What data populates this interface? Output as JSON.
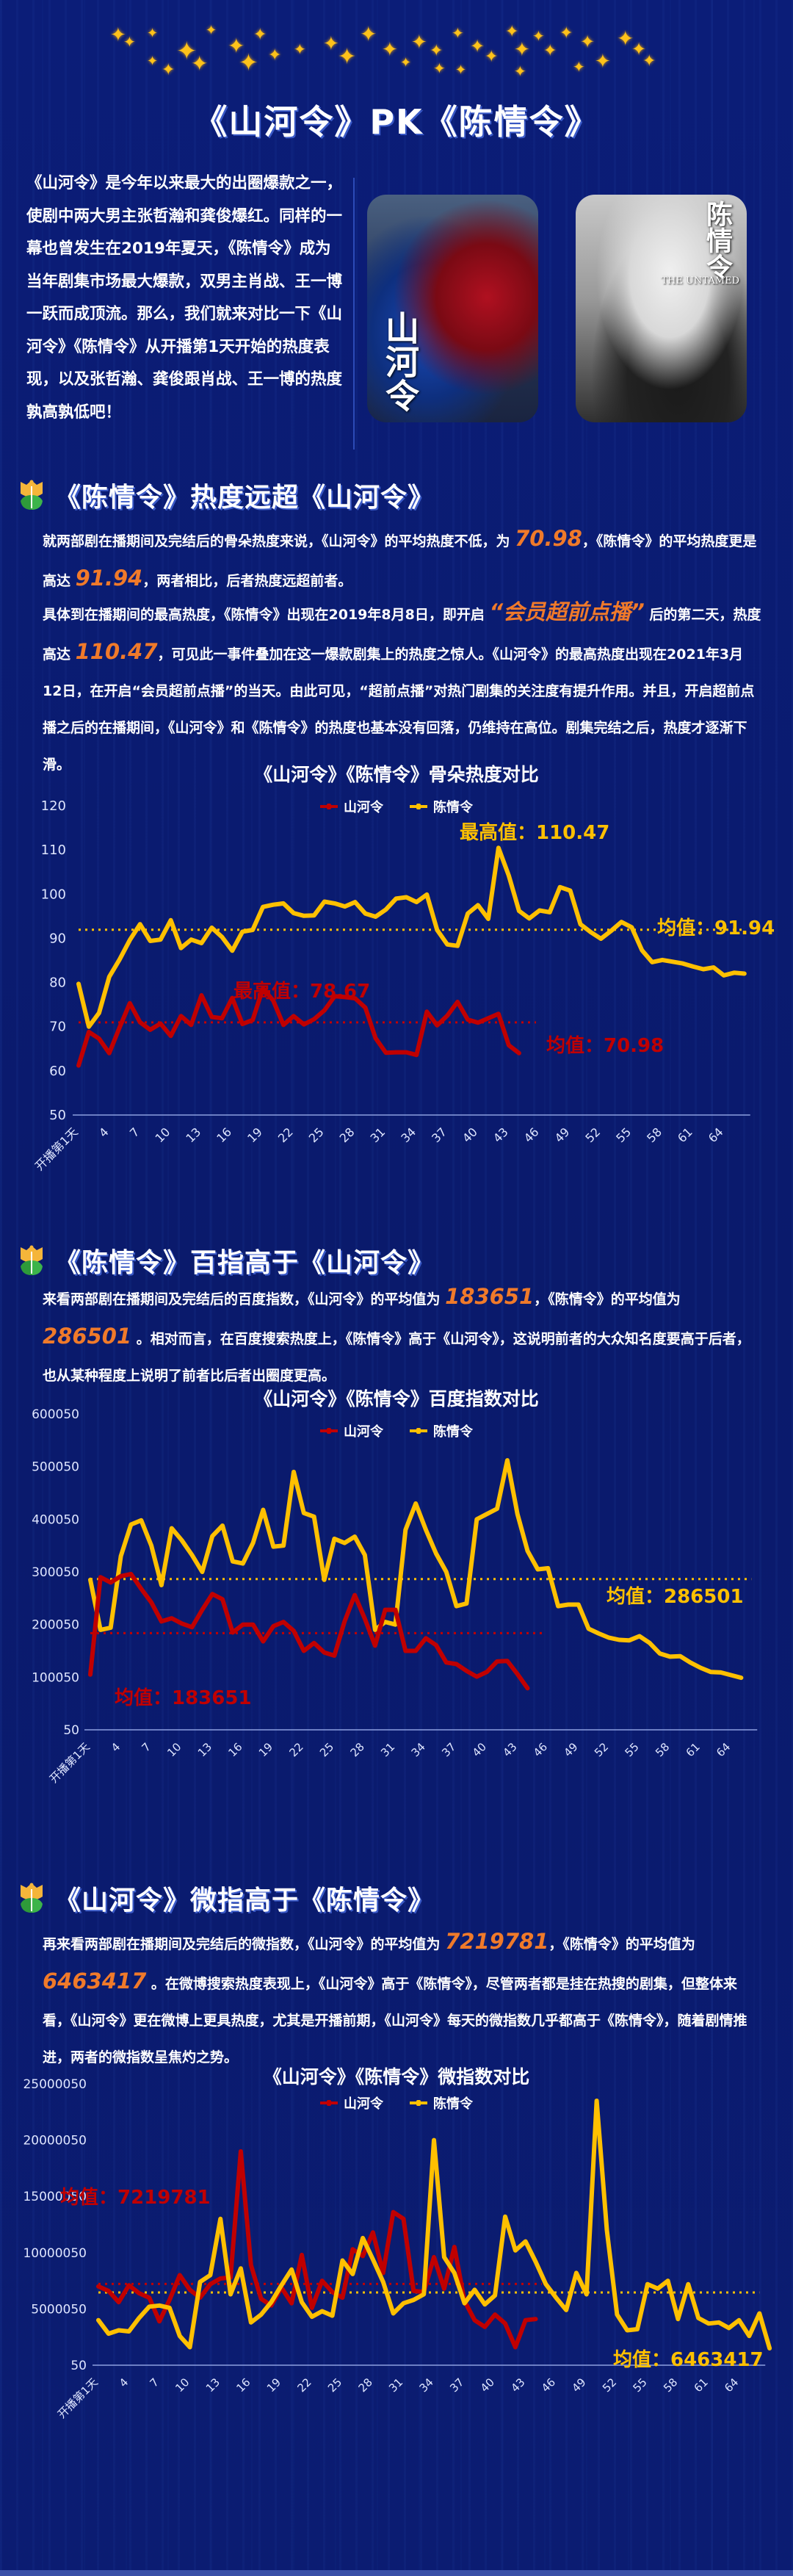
{
  "header": {
    "title": "《山河令》PK《陈情令》"
  },
  "intro": {
    "text": "《山河令》是今年以来最大的出圈爆款之一，使剧中两大男主张哲瀚和龚俊爆红。同样的一幕也曾发生在2019年夏天，《陈情令》成为当年剧集市场最大爆款，双男主肖战、王一博一跃而成顶流。那么，我们就来对比一下《山河令》《陈情令》从开播第1天开始的热度表现，以及张哲瀚、龚俊跟肖战、王一博的热度孰高孰低吧！",
    "posters": [
      {
        "title": "山河令",
        "subtitle": ""
      },
      {
        "title": "陈情令",
        "subtitle": "THE UNTAMED"
      }
    ]
  },
  "sections": [
    {
      "heading": "《陈情令》热度远超《山河令》",
      "paragraphs": [
        [
          "就两部剧在播期间及完结后的骨朵热度来说，《山河令》的平均热度不低，为 ",
          {
            "hl": "70.98"
          },
          "，《陈情令》的平均热度更是高达 ",
          {
            "hl": "91.94"
          },
          "，两者相比，后者热度远超前者。"
        ],
        [
          "具体到在播期间的最高热度，《陈情令》出现在2019年8月8日，即开启 ",
          {
            "hl": "“会员超前点播”"
          },
          " 后的第二天，热度高达 ",
          {
            "hl": "110.47"
          },
          "，可见此一事件叠加在这一爆款剧集上的热度之惊人。《山河令》的最高热度出现在2021年3月12日，在开启“会员超前点播”的当天。由此可见，“超前点播”对热门剧集的关注度有提升作用。并且，开启超前点播之后的在播期间，《山河令》和《陈情令》的热度也基本没有回落，仍维持在高位。剧集完结之后，热度才逐渐下滑。"
        ]
      ]
    },
    {
      "heading": "《陈情令》百指高于《山河令》",
      "paragraphs": [
        [
          "来看两部剧在播期间及完结后的百度指数，《山河令》的平均值为 ",
          {
            "hl": "183651"
          },
          "，《陈情令》的平均值为 ",
          {
            "hl": "286501"
          },
          " 。相对而言，在百度搜索热度上，《陈情令》高于《山河令》，这说明前者的大众知名度要高于后者，也从某种程度上说明了前者比后者出圈度更高。"
        ]
      ]
    },
    {
      "heading": "《山河令》微指高于《陈情令》",
      "paragraphs": [
        [
          "再来看两部剧在播期间及完结后的微指数，《山河令》的平均值为 ",
          {
            "hl": "7219781"
          },
          "，《陈情令》的平均值为 ",
          {
            "hl": "6463417"
          },
          " 。在微博搜索热度表现上，《山河令》高于《陈情令》，尽管两者都是挂在热搜的剧集，但整体来看，《山河令》更在微博上更具热度，尤其是开播前期，《山河令》每天的微指数几乎都高于《陈情令》，随着剧情推进，两者的微指数呈焦灼之势。"
        ]
      ]
    }
  ],
  "colors": {
    "background": "#0a1a6e",
    "shanheling": "#c00000",
    "chenqingling": "#ffc000",
    "highlight": "#f07a2a"
  },
  "chart_data": [
    {
      "type": "line",
      "title": "《山河令》《陈情令》骨朵热度对比",
      "xlabel": "",
      "ylabel": "",
      "ylim": [
        50,
        120
      ],
      "yticks": [
        50,
        60,
        70,
        80,
        90,
        100,
        110,
        120
      ],
      "xtick_labels": [
        "开播第1天",
        "4",
        "7",
        "10",
        "13",
        "16",
        "19",
        "22",
        "25",
        "28",
        "31",
        "34",
        "37",
        "40",
        "43",
        "46",
        "49",
        "52",
        "55",
        "58",
        "61",
        "64"
      ],
      "x_count": 66,
      "grid": false,
      "legend_position": "top",
      "series": [
        {
          "name": "山河令",
          "color": "#c00000",
          "values": [
            61.2,
            68.8,
            67.3,
            64.0,
            69.8,
            75.3,
            71.0,
            69.3,
            70.7,
            67.9,
            72.4,
            70.4,
            77.1,
            72.2,
            71.9,
            76.5,
            70.6,
            71.5,
            78.67,
            75.9,
            70.4,
            72.4,
            70.5,
            71.7,
            73.7,
            76.9,
            76.7,
            76.4,
            74.3,
            67.4,
            64.1,
            64.2,
            64.2,
            63.6,
            73.4,
            70.3,
            72.5,
            75.6,
            71.6,
            70.9,
            71.9,
            72.9,
            65.8,
            64.0
          ],
          "mean": 70.98,
          "max": 78.67,
          "mean_label": "均值：70.98",
          "max_label": "最高值：78.67"
        },
        {
          "name": "陈情令",
          "color": "#ffc000",
          "values": [
            79.7,
            70.0,
            73.1,
            81.3,
            85.2,
            89.6,
            93.2,
            89.4,
            89.7,
            94.1,
            87.8,
            89.7,
            88.9,
            92.4,
            90.3,
            87.2,
            91.5,
            91.9,
            97.1,
            97.6,
            97.9,
            95.7,
            95.1,
            95.2,
            98.3,
            97.9,
            97.2,
            98.2,
            95.6,
            94.9,
            96.5,
            99.0,
            99.3,
            98.2,
            99.9,
            91.9,
            88.6,
            88.3,
            95.6,
            97.5,
            94.4,
            110.47,
            104.2,
            96.2,
            94.5,
            96.3,
            95.9,
            101.6,
            100.8,
            93.2,
            91.4,
            89.9,
            91.7,
            93.7,
            92.5,
            87.3,
            84.6,
            85.1,
            84.7,
            84.3,
            83.6,
            83.0,
            83.4,
            81.6,
            82.2,
            82.0
          ],
          "mean": 91.94,
          "max": 110.47,
          "mean_label": "均值：91.94",
          "max_label": "最高值：110.47"
        }
      ]
    },
    {
      "type": "line",
      "title": "《山河令》《陈情令》百度指数对比",
      "xlabel": "",
      "ylabel": "",
      "ylim": [
        50,
        600050
      ],
      "yticks": [
        50,
        100050,
        200050,
        300050,
        400050,
        500050,
        600050
      ],
      "xtick_labels": [
        "开播第1天",
        "4",
        "7",
        "10",
        "13",
        "16",
        "19",
        "22",
        "25",
        "28",
        "31",
        "34",
        "37",
        "40",
        "43",
        "46",
        "49",
        "52",
        "55",
        "58",
        "61",
        "64"
      ],
      "x_count": 66,
      "grid": false,
      "legend_position": "top",
      "series": [
        {
          "name": "山河令",
          "color": "#c00000",
          "values": [
            105000,
            290000,
            280000,
            292000,
            296000,
            268000,
            242000,
            206000,
            212000,
            202000,
            195000,
            228000,
            258000,
            248000,
            185000,
            200000,
            200000,
            168000,
            197000,
            205000,
            188000,
            150000,
            165000,
            147000,
            141000,
            206000,
            256000,
            211000,
            160000,
            228000,
            228000,
            150000,
            150000,
            174000,
            161000,
            128000,
            125000,
            112000,
            101000,
            110000,
            130000,
            131000,
            106000,
            79000
          ],
          "mean": 183651,
          "mean_label": "均值：183651"
        },
        {
          "name": "陈情令",
          "color": "#ffc000",
          "values": [
            285000,
            190000,
            194000,
            330000,
            390000,
            398000,
            350000,
            275000,
            383000,
            360000,
            332000,
            300000,
            368000,
            388000,
            320000,
            316000,
            355000,
            418000,
            348000,
            350000,
            490000,
            412000,
            405000,
            285000,
            363000,
            355000,
            367000,
            332000,
            190000,
            205000,
            200000,
            380000,
            430000,
            380000,
            335000,
            300000,
            235000,
            240000,
            400000,
            410000,
            420000,
            512000,
            410000,
            340000,
            305000,
            307000,
            235000,
            238000,
            238000,
            192000,
            183000,
            175000,
            171000,
            170000,
            178000,
            165000,
            145000,
            139000,
            140000,
            128000,
            118000,
            110000,
            109000,
            104000,
            99000
          ],
          "mean": 286501,
          "mean_label": "均值：286501"
        }
      ]
    },
    {
      "type": "line",
      "title": "《山河令》《陈情令》微指数对比",
      "xlabel": "",
      "ylabel": "",
      "ylim": [
        50,
        25000050
      ],
      "yticks": [
        50,
        5000050,
        10000050,
        15000050,
        20000050,
        25000050
      ],
      "xtick_labels": [
        "开播第1天",
        "4",
        "7",
        "10",
        "13",
        "16",
        "19",
        "22",
        "25",
        "28",
        "31",
        "34",
        "37",
        "40",
        "43",
        "46",
        "49",
        "52",
        "55",
        "58",
        "61",
        "64"
      ],
      "x_count": 66,
      "grid": false,
      "legend_position": "top",
      "series": [
        {
          "name": "山河令",
          "color": "#c00000",
          "values": [
            7000000,
            6600000,
            5600000,
            7100000,
            6400000,
            6000000,
            3900000,
            5800000,
            8000000,
            6700000,
            6000000,
            7200000,
            7700000,
            7800000,
            19000000,
            8900000,
            5900000,
            5300000,
            6900000,
            5500000,
            9800000,
            5100000,
            7500000,
            6500000,
            6000000,
            10300000,
            9700000,
            11800000,
            8200000,
            13600000,
            13000000,
            6600000,
            6500000,
            9600000,
            6800000,
            10500000,
            5700000,
            4000000,
            3400000,
            4500000,
            3700000,
            1600000,
            4000000,
            4100000
          ],
          "mean": 7219781,
          "mean_label": "均值：7219781"
        },
        {
          "name": "陈情令",
          "color": "#ffc000",
          "values": [
            4000000,
            2800000,
            3100000,
            3000000,
            4200000,
            5200000,
            5300000,
            5100000,
            2600000,
            1600000,
            7400000,
            8000000,
            13000000,
            6300000,
            8600000,
            3800000,
            4500000,
            5600000,
            7100000,
            8500000,
            5600000,
            4300000,
            4800000,
            4400000,
            9300000,
            8100000,
            11300000,
            9400000,
            7400000,
            4600000,
            5500000,
            5800000,
            6300000,
            20000000,
            9600000,
            8200000,
            5500000,
            6700000,
            5400000,
            6200000,
            13200000,
            10200000,
            11000000,
            9200000,
            7200000,
            6000000,
            4900000,
            8200000,
            6300000,
            23500000,
            12000000,
            4500000,
            3100000,
            3200000,
            7200000,
            6800000,
            7500000,
            4100000,
            7200000,
            4200000,
            3700000,
            3800000,
            3300000,
            4000000,
            2600000,
            4600000,
            1500000
          ],
          "mean": 6463417,
          "mean_label": "均值：6463417"
        }
      ]
    }
  ]
}
